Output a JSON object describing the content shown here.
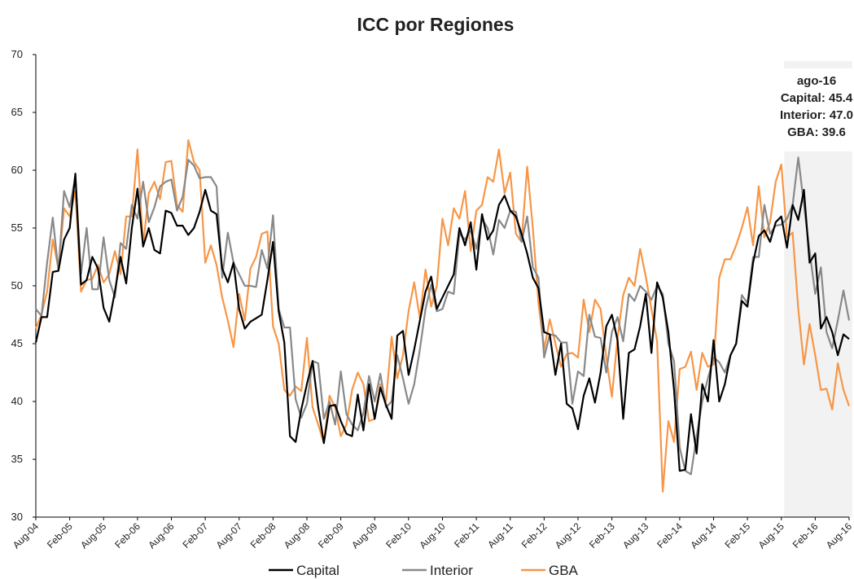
{
  "chart_data": {
    "type": "line",
    "title": "ICC por Regiones",
    "categories": [
      "Aug-04",
      null,
      null,
      null,
      null,
      null,
      "Feb-05",
      null,
      null,
      null,
      null,
      null,
      "Aug-05",
      null,
      null,
      null,
      null,
      null,
      "Feb-06",
      null,
      null,
      null,
      null,
      null,
      "Aug-06",
      null,
      null,
      null,
      null,
      null,
      "Feb-07",
      null,
      null,
      null,
      null,
      null,
      "Aug-07",
      null,
      null,
      null,
      null,
      null,
      "Feb-08",
      null,
      null,
      null,
      null,
      null,
      "Aug-08",
      null,
      null,
      null,
      null,
      null,
      "Feb-09",
      null,
      null,
      null,
      null,
      null,
      "Aug-09",
      null,
      null,
      null,
      null,
      null,
      "Feb-10",
      null,
      null,
      null,
      null,
      null,
      "Aug-10",
      null,
      null,
      null,
      null,
      null,
      "Feb-11",
      null,
      null,
      null,
      null,
      null,
      "Aug-11",
      null,
      null,
      null,
      null,
      null,
      "Feb-12",
      null,
      null,
      null,
      null,
      null,
      "Aug-12",
      null,
      null,
      null,
      null,
      null,
      "Feb-13",
      null,
      null,
      null,
      null,
      null,
      "Aug-13",
      null,
      null,
      null,
      null,
      null,
      "Feb-14",
      null,
      null,
      null,
      null,
      null,
      "Aug-14",
      null,
      null,
      null,
      null,
      null,
      "Feb-15",
      null,
      null,
      null,
      null,
      null,
      "Aug-15",
      null,
      null,
      null,
      null,
      null,
      "Feb-16",
      null,
      null,
      null,
      null,
      null,
      "Aug-16"
    ],
    "series": [
      {
        "name": "Capital",
        "color": "#000000",
        "values": [
          45.1,
          47.3,
          47.3,
          51.2,
          51.3,
          54.0,
          55.0,
          59.7,
          50.1,
          50.5,
          52.5,
          51.5,
          48.1,
          46.9,
          49.5,
          52.5,
          50.2,
          55.0,
          58.4,
          53.4,
          55.0,
          53.1,
          52.8,
          56.5,
          56.3,
          55.2,
          55.2,
          54.4,
          55.0,
          56.4,
          58.3,
          56.5,
          56.2,
          51.5,
          50.3,
          52.0,
          48.0,
          46.3,
          46.9,
          47.2,
          47.5,
          50.5,
          53.8,
          47.8,
          45.1,
          37.0,
          36.5,
          39.3,
          41.5,
          43.5,
          39.5,
          36.4,
          39.6,
          39.7,
          38.3,
          37.2,
          37.0,
          40.6,
          37.5,
          41.5,
          38.5,
          41.2,
          39.7,
          38.5,
          45.7,
          46.1,
          42.3,
          44.5,
          47.0,
          49.5,
          50.8,
          48.0,
          49.0,
          50.0,
          51.0,
          55.0,
          53.5,
          55.5,
          51.4,
          56.2,
          54.0,
          54.8,
          57.0,
          57.8,
          56.5,
          56.0,
          54.5,
          52.8,
          50.7,
          49.8,
          46.0,
          45.8,
          42.3,
          45.0,
          39.8,
          39.4,
          37.6,
          40.5,
          42.0,
          39.9,
          42.5,
          46.5,
          47.5,
          45.3,
          38.5,
          44.2,
          44.5,
          46.5,
          49.3,
          44.2,
          50.3,
          49.0,
          46.0,
          41.0,
          34.0,
          34.1,
          38.9,
          35.5,
          41.5,
          40.0,
          45.3,
          40.0,
          41.5,
          44.0,
          45.0,
          48.7,
          48.2,
          52.0,
          54.3,
          54.8,
          53.8,
          55.5,
          56.0,
          53.3,
          57.0,
          55.7,
          58.3,
          52.0,
          52.8,
          46.3,
          47.3,
          46.0,
          44.0,
          45.8,
          45.4
        ]
      },
      {
        "name": "Interior",
        "color": "#898989",
        "values": [
          48.0,
          47.4,
          52.0,
          55.9,
          51.3,
          58.2,
          56.8,
          59.4,
          51.0,
          55.0,
          49.7,
          49.7,
          54.2,
          50.5,
          49.0,
          53.7,
          53.2,
          57.0,
          55.8,
          59.0,
          55.5,
          56.8,
          58.6,
          59.0,
          59.2,
          56.5,
          57.7,
          60.9,
          60.4,
          59.3,
          59.4,
          59.4,
          58.6,
          50.7,
          54.6,
          52.0,
          51.0,
          50.0,
          50.0,
          49.9,
          53.1,
          51.5,
          56.1,
          48.0,
          46.4,
          46.4,
          40.2,
          38.6,
          39.8,
          43.5,
          43.3,
          38.5,
          40.0,
          38.0,
          42.6,
          38.9,
          38.0,
          37.5,
          39.0,
          42.2,
          40.0,
          42.4,
          39.5,
          40.0,
          44.0,
          42.0,
          39.8,
          41.5,
          44.5,
          48.0,
          50.1,
          47.8,
          48.0,
          49.5,
          49.3,
          54.5,
          54.0,
          54.8,
          53.2,
          55.8,
          55.0,
          52.7,
          55.7,
          55.0,
          56.5,
          56.4,
          53.8,
          56.0,
          51.6,
          50.7,
          43.8,
          45.8,
          45.7,
          45.1,
          45.1,
          39.8,
          42.6,
          42.2,
          47.5,
          45.6,
          45.5,
          42.5,
          46.0,
          47.3,
          45.2,
          49.3,
          48.7,
          50.0,
          49.5,
          48.8,
          50.0,
          49.3,
          45.0,
          43.5,
          36.0,
          34.0,
          33.7,
          37.0,
          40.0,
          42.0,
          43.8,
          43.4,
          42.5,
          44.0,
          45.0,
          49.2,
          48.5,
          52.5,
          52.5,
          57.0,
          54.5,
          55.2,
          55.3,
          55.8,
          57.0,
          61.1,
          57.0,
          53.0,
          49.3,
          51.6,
          46.0,
          44.6,
          47.0,
          49.6,
          47.0
        ]
      },
      {
        "name": "GBA",
        "color": "#f79646",
        "values": [
          46.3,
          47.5,
          49.5,
          54.0,
          51.5,
          56.7,
          56.0,
          58.2,
          49.5,
          50.5,
          50.6,
          51.8,
          50.3,
          51.0,
          53.0,
          51.0,
          56.0,
          56.0,
          61.8,
          53.5,
          58.0,
          59.0,
          57.5,
          60.7,
          60.8,
          57.0,
          56.4,
          62.6,
          60.7,
          60.0,
          52.0,
          53.5,
          51.8,
          49.0,
          47.0,
          44.7,
          49.3,
          47.0,
          51.5,
          52.5,
          54.5,
          54.7,
          46.5,
          45.0,
          41.0,
          40.5,
          41.3,
          40.9,
          45.5,
          39.5,
          38.0,
          36.4,
          40.5,
          39.5,
          37.0,
          38.0,
          41.0,
          42.5,
          41.5,
          38.3,
          38.5,
          41.5,
          40.0,
          45.6,
          42.0,
          44.0,
          47.8,
          50.3,
          47.2,
          51.4,
          48.2,
          50.0,
          55.8,
          53.5,
          56.7,
          55.8,
          58.2,
          53.0,
          56.5,
          57.0,
          59.4,
          59.0,
          61.8,
          58.0,
          59.8,
          54.5,
          53.8,
          60.3,
          55.0,
          48.5,
          44.5,
          47.1,
          45.0,
          43.0,
          44.1,
          44.2,
          43.8,
          48.8,
          46.0,
          48.8,
          48.0,
          43.8,
          40.4,
          45.5,
          49.2,
          50.7,
          50.0,
          53.2,
          50.8,
          48.0,
          45.2,
          32.2,
          38.3,
          36.5,
          42.8,
          43.0,
          44.3,
          41.0,
          44.2,
          43.0,
          43.2,
          50.7,
          52.3,
          52.3,
          53.5,
          55.0,
          56.8,
          53.5,
          58.6,
          54.2,
          55.5,
          59.0,
          60.5,
          54.2,
          54.6,
          48.0,
          43.2,
          46.7,
          44.0,
          41.0,
          41.1,
          39.3,
          43.3,
          41.0,
          39.6
        ]
      }
    ],
    "ylim": [
      30,
      70
    ],
    "yticks": [
      30,
      35,
      40,
      45,
      50,
      55,
      60,
      65,
      70
    ],
    "annotation": [
      "ago-16",
      "Capital: 45.4",
      "Interior: 47.0",
      "GBA: 39.6"
    ],
    "legend": "bottom",
    "grid": false
  }
}
